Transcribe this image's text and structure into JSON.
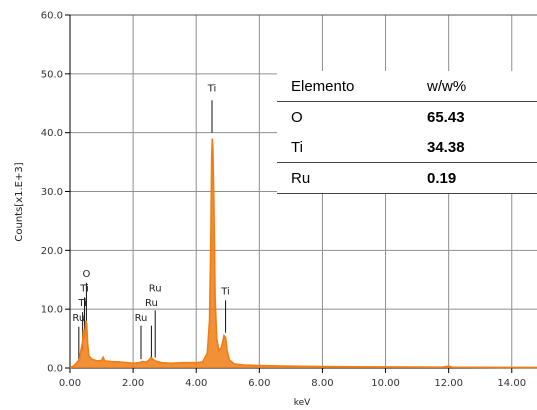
{
  "chart_data": {
    "type": "line",
    "title": "",
    "xlabel": "keV",
    "ylabel": "Counts[x1.E+3]",
    "xlim": [
      0,
      14.8
    ],
    "ylim": [
      0,
      60
    ],
    "x_ticks": [
      "0.00",
      "2.00",
      "4.00",
      "6.00",
      "8.00",
      "10.00",
      "12.00",
      "14.00"
    ],
    "y_ticks": [
      "0.0",
      "10.0",
      "20.0",
      "30.0",
      "40.0",
      "50.0",
      "60.0"
    ],
    "grid": true,
    "series_color": "#f07d14",
    "spectrum": [
      [
        0.0,
        0
      ],
      [
        0.1,
        0.3
      ],
      [
        0.2,
        0.8
      ],
      [
        0.3,
        1.5
      ],
      [
        0.35,
        3
      ],
      [
        0.4,
        4.5
      ],
      [
        0.43,
        6.5
      ],
      [
        0.46,
        5
      ],
      [
        0.5,
        8
      ],
      [
        0.53,
        7.5
      ],
      [
        0.56,
        4
      ],
      [
        0.6,
        2
      ],
      [
        0.7,
        1.5
      ],
      [
        0.85,
        1.2
      ],
      [
        1.0,
        1.3
      ],
      [
        1.05,
        1.8
      ],
      [
        1.1,
        1.2
      ],
      [
        1.3,
        1.1
      ],
      [
        1.6,
        1.0
      ],
      [
        1.8,
        0.9
      ],
      [
        2.0,
        0.8
      ],
      [
        2.2,
        0.9
      ],
      [
        2.3,
        1.1
      ],
      [
        2.4,
        1.0
      ],
      [
        2.5,
        1.3
      ],
      [
        2.56,
        1.8
      ],
      [
        2.6,
        1.6
      ],
      [
        2.7,
        1.2
      ],
      [
        2.9,
        0.9
      ],
      [
        3.2,
        0.8
      ],
      [
        3.6,
        0.9
      ],
      [
        4.0,
        0.9
      ],
      [
        4.2,
        1.0
      ],
      [
        4.35,
        2.5
      ],
      [
        4.42,
        8
      ],
      [
        4.46,
        20
      ],
      [
        4.49,
        36
      ],
      [
        4.51,
        39
      ],
      [
        4.53,
        37
      ],
      [
        4.56,
        28
      ],
      [
        4.6,
        12
      ],
      [
        4.65,
        5
      ],
      [
        4.72,
        3
      ],
      [
        4.8,
        3.5
      ],
      [
        4.88,
        5.5
      ],
      [
        4.93,
        5.2
      ],
      [
        4.98,
        3
      ],
      [
        5.05,
        1.4
      ],
      [
        5.2,
        0.7
      ],
      [
        5.5,
        0.5
      ],
      [
        6.0,
        0.4
      ],
      [
        7.0,
        0.3
      ],
      [
        8.0,
        0.25
      ],
      [
        9.0,
        0.2
      ],
      [
        10.0,
        0.18
      ],
      [
        11.0,
        0.15
      ],
      [
        11.8,
        0.14
      ],
      [
        12.0,
        0.3
      ],
      [
        12.1,
        0.14
      ],
      [
        13.0,
        0.12
      ],
      [
        14.0,
        0.1
      ],
      [
        14.8,
        0.1
      ]
    ],
    "peak_labels": [
      {
        "text": "O",
        "x": 0.52,
        "y": 15.5
      },
      {
        "text": "Ti",
        "x": 0.46,
        "y": 13.0
      },
      {
        "text": "Ti",
        "x": 0.4,
        "y": 10.5
      },
      {
        "text": "Ru",
        "x": 0.28,
        "y": 8.0
      },
      {
        "text": "Ru",
        "x": 2.7,
        "y": 13.0
      },
      {
        "text": "Ru",
        "x": 2.58,
        "y": 10.5
      },
      {
        "text": "Ru",
        "x": 2.25,
        "y": 8.0
      },
      {
        "text": "Ti",
        "x": 4.5,
        "y": 47.0
      },
      {
        "text": "Ti",
        "x": 4.93,
        "y": 12.5
      }
    ],
    "marker_lines": [
      {
        "x": 0.28,
        "y1": 1.5,
        "y2": 7.0
      },
      {
        "x": 0.4,
        "y1": 3.0,
        "y2": 9.5
      },
      {
        "x": 0.46,
        "y1": 5.0,
        "y2": 12.0
      },
      {
        "x": 0.52,
        "y1": 8.0,
        "y2": 14.5
      },
      {
        "x": 2.25,
        "y1": 1.5,
        "y2": 7.2
      },
      {
        "x": 2.58,
        "y1": 1.8,
        "y2": 7.2
      },
      {
        "x": 2.7,
        "y1": 1.8,
        "y2": 9.8
      },
      {
        "x": 4.5,
        "y1": 40.0,
        "y2": 45.5
      },
      {
        "x": 4.93,
        "y1": 6.0,
        "y2": 11.5
      }
    ]
  },
  "composition_table": {
    "headers": [
      "Elemento",
      "w/w%"
    ],
    "rows": [
      {
        "element": "O",
        "value": "65.43"
      },
      {
        "element": "Ti",
        "value": "34.38"
      },
      {
        "element": "Ru",
        "value": "0.19"
      }
    ]
  }
}
